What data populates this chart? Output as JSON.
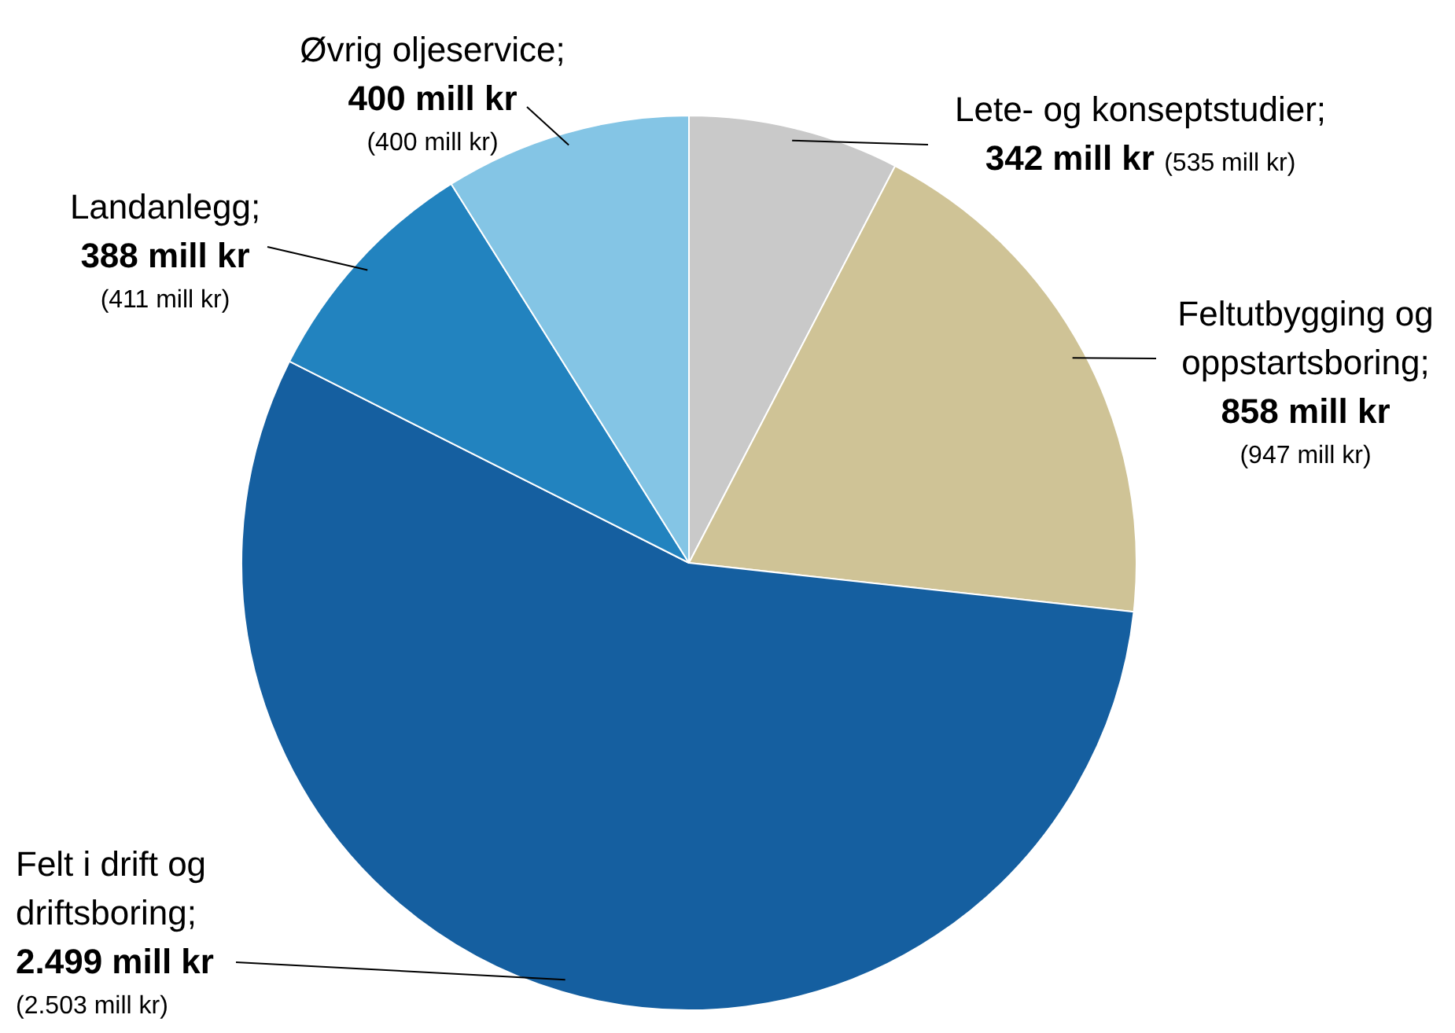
{
  "chart_data": {
    "type": "pie",
    "categories": [
      "Lete- og konseptstudier",
      "Feltutbygging og oppstartsboring",
      "Felt i drift og driftsboring",
      "Landanlegg",
      "Øvrig oljeservice"
    ],
    "values": [
      342,
      858,
      2499,
      388,
      400
    ],
    "colors": [
      "#c9c9c9",
      "#cfc396",
      "#155fa0",
      "#2283bf",
      "#84c5e5"
    ],
    "value_labels": [
      "342 mill kr (535 mill kr)",
      "858 mill kr (947 mill kr)",
      "2.499 mill kr (2.503 mill kr)",
      "388 mill kr (411 mill kr)",
      "400 mill kr (400 mill kr)"
    ],
    "annotations": [
      ";"
    ],
    "legend": false
  }
}
